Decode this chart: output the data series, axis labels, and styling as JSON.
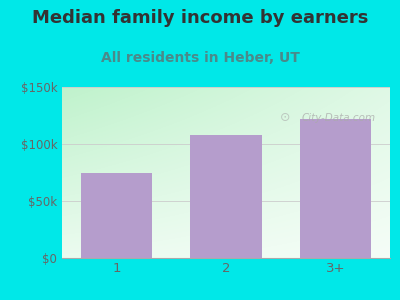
{
  "title": "Median family income by earners",
  "subtitle": "All residents in Heber, UT",
  "categories": [
    "1",
    "2",
    "3+"
  ],
  "values": [
    75000,
    108000,
    122000
  ],
  "bar_color": "#b59dcc",
  "outer_bg": "#00e8e8",
  "title_color": "#333333",
  "subtitle_color": "#4a8a8a",
  "tick_label_color": "#666666",
  "ylim": [
    0,
    150000
  ],
  "yticks": [
    0,
    50000,
    100000,
    150000
  ],
  "ytick_labels": [
    "$0",
    "$50k",
    "$100k",
    "$150k"
  ],
  "watermark": "City-Data.com",
  "title_fontsize": 13,
  "subtitle_fontsize": 10
}
